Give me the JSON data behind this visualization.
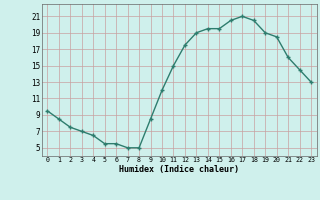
{
  "x": [
    0,
    1,
    2,
    3,
    4,
    5,
    6,
    7,
    8,
    9,
    10,
    11,
    12,
    13,
    14,
    15,
    16,
    17,
    18,
    19,
    20,
    21,
    22,
    23
  ],
  "y": [
    9.5,
    8.5,
    7.5,
    7.0,
    6.5,
    5.5,
    5.5,
    5.0,
    5.0,
    8.5,
    12.0,
    15.0,
    17.5,
    19.0,
    19.5,
    19.5,
    20.5,
    21.0,
    20.5,
    19.0,
    18.5,
    16.0,
    14.5,
    13.0
  ],
  "xlabel": "Humidex (Indice chaleur)",
  "yticks": [
    5,
    7,
    9,
    11,
    13,
    15,
    17,
    19,
    21
  ],
  "xticks": [
    0,
    1,
    2,
    3,
    4,
    5,
    6,
    7,
    8,
    9,
    10,
    11,
    12,
    13,
    14,
    15,
    16,
    17,
    18,
    19,
    20,
    21,
    22,
    23
  ],
  "ylim": [
    4.0,
    22.5
  ],
  "xlim": [
    -0.5,
    23.5
  ],
  "line_color": "#2e7d6e",
  "bg_color": "#cff0ec",
  "grid_color": "#b8b8b8",
  "grid_color_major": "#c8a0a0"
}
